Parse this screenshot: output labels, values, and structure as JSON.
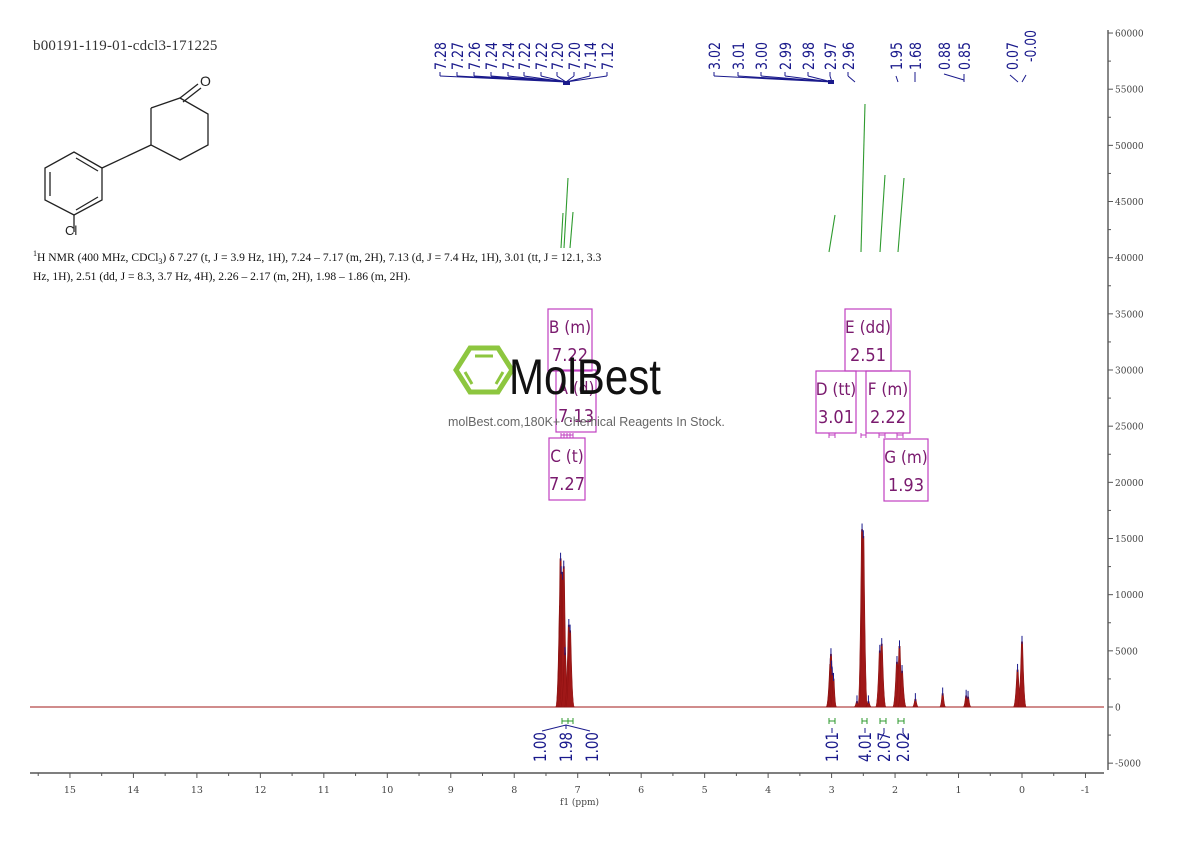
{
  "title": "b00191-119-01-cdcl3-171225",
  "structure": {
    "name": "4-(3-chlorophenyl)cyclohexan-1-one",
    "labels": {
      "oxygen": "O",
      "chlorine": "Cl"
    }
  },
  "nmr_description": {
    "prefix_sup": "1",
    "text_1": "H NMR (400 MHz, CDCl",
    "sub_3": "3",
    "text_2": ") δ 7.27 (t, J = 3.9 Hz, 1H), 7.24 – 7.17 (m, 2H), 7.13 (d, J = 7.4 Hz, 1H), 3.01 (tt, J = 12.1, 3.3 Hz, 1H), 2.51 (dd, J = 8.3, 3.7 Hz, 4H), 2.26 – 2.17 (m, 2H), 1.98 – 1.86 (m, 2H)."
  },
  "watermark": {
    "brand": "MolBest",
    "tagline": "molBest.com,180K+ Chemical Reagents In Stock.",
    "logo_color": "#8dc63f"
  },
  "colors": {
    "spectrum": "#a01818",
    "peak_marker": "#1a1a8c",
    "integral": "#2e9a2e",
    "multiplet_box": "#c040c0",
    "multiplet_text": "#7a1a6e",
    "axis": "#555555"
  },
  "peak_labels": {
    "group1": [
      "7.28",
      "7.27",
      "7.26",
      "7.24",
      "7.24",
      "7.22",
      "7.22",
      "7.20",
      "7.20",
      "7.14",
      "7.12"
    ],
    "group2": [
      "3.02",
      "3.01",
      "3.00",
      "2.99",
      "2.98",
      "2.97",
      "2.96"
    ],
    "group3": [
      "1.95",
      "1.68"
    ],
    "group4": [
      "0.88",
      "0.85"
    ],
    "group5": [
      "0.07",
      "-0.00"
    ]
  },
  "multiplets": [
    {
      "id": "A",
      "type": "d",
      "label": "A (d)",
      "shift": "7.13"
    },
    {
      "id": "B",
      "type": "m",
      "label": "B (m)",
      "shift": "7.22"
    },
    {
      "id": "C",
      "type": "t",
      "label": "C (t)",
      "shift": "7.27"
    },
    {
      "id": "D",
      "type": "tt",
      "label": "D (tt)",
      "shift": "3.01"
    },
    {
      "id": "E",
      "type": "dd",
      "label": "E (dd)",
      "shift": "2.51"
    },
    {
      "id": "F",
      "type": "m",
      "label": "F (m)",
      "shift": "2.22"
    },
    {
      "id": "G",
      "type": "m",
      "label": "G (m)",
      "shift": "1.93"
    }
  ],
  "integrals": [
    {
      "value": "1.00",
      "ppm": 7.27
    },
    {
      "value": "1.98",
      "ppm": 7.21
    },
    {
      "value": "1.00",
      "ppm": 7.13
    },
    {
      "value": "1.01",
      "ppm": 3.01
    },
    {
      "value": "4.01",
      "ppm": 2.51
    },
    {
      "value": "2.07",
      "ppm": 2.22
    },
    {
      "value": "2.02",
      "ppm": 1.93
    }
  ],
  "chart_data": {
    "type": "line",
    "title": "b00191-119-01-cdcl3-171225",
    "xlabel": "f1 (ppm)",
    "ylabel": "",
    "xlim": [
      15.7,
      -1.1
    ],
    "ylim": [
      -5500,
      61000
    ],
    "x_reversed": true,
    "grid": false,
    "xticks": [
      "15",
      "14",
      "13",
      "12",
      "11",
      "10",
      "9",
      "8",
      "7",
      "6",
      "5",
      "4",
      "3",
      "2",
      "1",
      "0",
      "-1"
    ],
    "yticks": [
      "60000",
      "55000",
      "50000",
      "45000",
      "40000",
      "35000",
      "30000",
      "25000",
      "20000",
      "15000",
      "10000",
      "5000",
      "0",
      "-5000"
    ],
    "peaks": [
      {
        "ppm": 7.28,
        "intensity": 9000
      },
      {
        "ppm": 7.27,
        "intensity": 13200
      },
      {
        "ppm": 7.26,
        "intensity": 12000
      },
      {
        "ppm": 7.24,
        "intensity": 11500
      },
      {
        "ppm": 7.22,
        "intensity": 12500
      },
      {
        "ppm": 7.2,
        "intensity": 4800
      },
      {
        "ppm": 7.14,
        "intensity": 7300
      },
      {
        "ppm": 7.12,
        "intensity": 6800
      },
      {
        "ppm": 3.02,
        "intensity": 3800
      },
      {
        "ppm": 3.01,
        "intensity": 4700
      },
      {
        "ppm": 3.0,
        "intensity": 3600
      },
      {
        "ppm": 2.99,
        "intensity": 3000
      },
      {
        "ppm": 2.97,
        "intensity": 2500
      },
      {
        "ppm": 2.6,
        "intensity": 500
      },
      {
        "ppm": 2.52,
        "intensity": 15800
      },
      {
        "ppm": 2.5,
        "intensity": 15200
      },
      {
        "ppm": 2.42,
        "intensity": 500
      },
      {
        "ppm": 2.24,
        "intensity": 5000
      },
      {
        "ppm": 2.21,
        "intensity": 5600
      },
      {
        "ppm": 1.97,
        "intensity": 4000
      },
      {
        "ppm": 1.93,
        "intensity": 5400
      },
      {
        "ppm": 1.89,
        "intensity": 3200
      },
      {
        "ppm": 1.68,
        "intensity": 700
      },
      {
        "ppm": 1.25,
        "intensity": 1200
      },
      {
        "ppm": 0.88,
        "intensity": 1000
      },
      {
        "ppm": 0.85,
        "intensity": 900
      },
      {
        "ppm": 0.07,
        "intensity": 3300
      },
      {
        "ppm": 0.0,
        "intensity": 5800
      }
    ],
    "integral_regions": [
      {
        "from": 7.29,
        "to": 7.25,
        "value": 1.0
      },
      {
        "from": 7.25,
        "to": 7.16,
        "value": 1.98
      },
      {
        "from": 7.16,
        "to": 7.1,
        "value": 1.0
      },
      {
        "from": 3.06,
        "to": 2.94,
        "value": 1.01
      },
      {
        "from": 2.56,
        "to": 2.46,
        "value": 4.01
      },
      {
        "from": 2.28,
        "to": 2.15,
        "value": 2.07
      },
      {
        "from": 2.0,
        "to": 1.84,
        "value": 2.02
      }
    ],
    "annotations": [
      "A (d) 7.13",
      "B (m) 7.22",
      "C (t) 7.27",
      "D (tt) 3.01",
      "E (dd) 2.51",
      "F (m) 2.22",
      "G (m) 1.93"
    ]
  }
}
